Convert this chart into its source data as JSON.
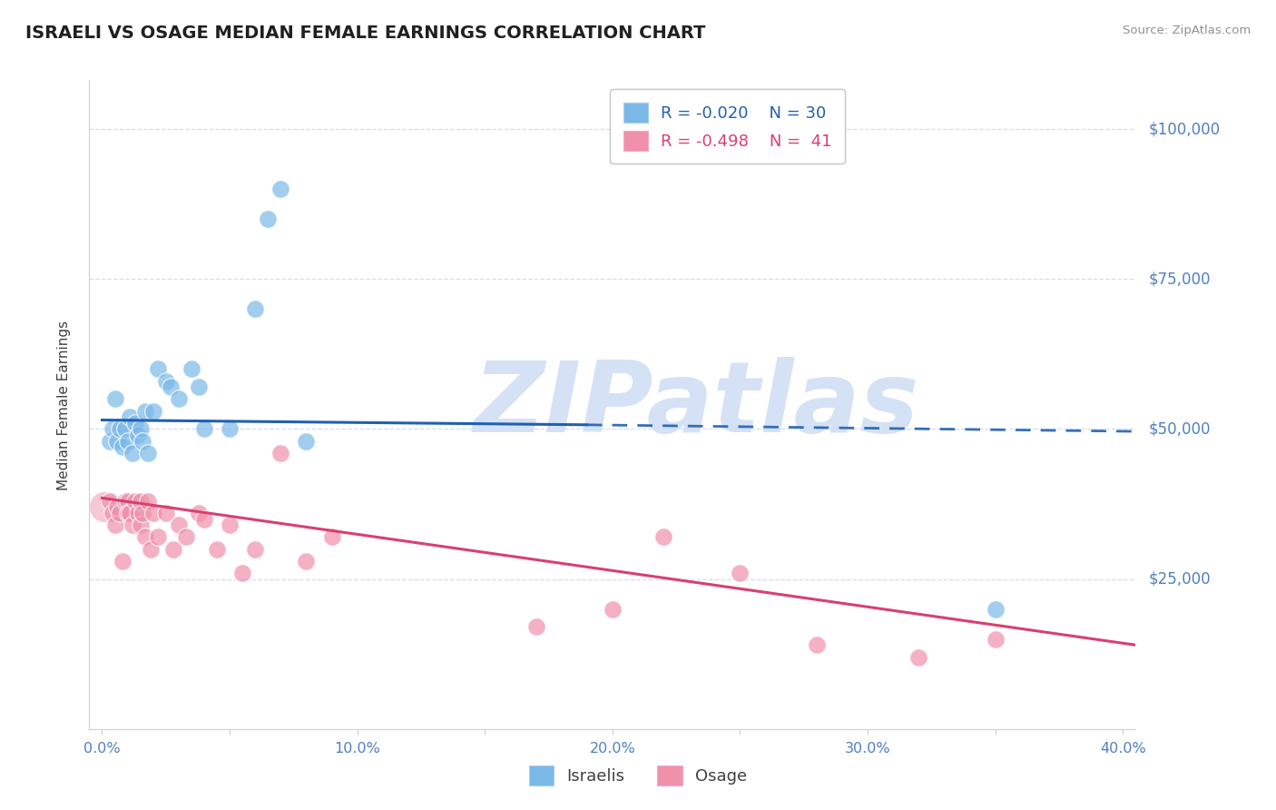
{
  "title": "ISRAELI VS OSAGE MEDIAN FEMALE EARNINGS CORRELATION CHART",
  "source": "Source: ZipAtlas.com",
  "ylabel": "Median Female Earnings",
  "xlim": [
    -0.005,
    0.405
  ],
  "ylim": [
    0,
    108000
  ],
  "yticks": [
    25000,
    50000,
    75000,
    100000
  ],
  "ytick_labels": [
    "$25,000",
    "$50,000",
    "$75,000",
    "$100,000"
  ],
  "xticks": [
    0.0,
    0.05,
    0.1,
    0.15,
    0.2,
    0.25,
    0.3,
    0.35,
    0.4
  ],
  "xtick_labels": [
    "0.0%",
    "",
    "10.0%",
    "",
    "20.0%",
    "",
    "30.0%",
    "",
    "40.0%"
  ],
  "legend_R_israeli": "-0.020",
  "legend_N_israeli": "30",
  "legend_R_osage": "-0.498",
  "legend_N_osage": "41",
  "israeli_color": "#7ab8e8",
  "osage_color": "#f090aa",
  "trend_israeli_color": "#2060b0",
  "trend_osage_color": "#d84070",
  "grid_color": "#d0dff5",
  "watermark_color": "#d5e2f5",
  "background_color": "#ffffff",
  "title_color": "#202020",
  "title_fontsize": 14,
  "axis_label_color": "#404040",
  "tick_label_color": "#5080c0",
  "source_color": "#909090",
  "israeli_x": [
    0.003,
    0.004,
    0.005,
    0.006,
    0.007,
    0.008,
    0.009,
    0.01,
    0.011,
    0.012,
    0.013,
    0.014,
    0.015,
    0.016,
    0.017,
    0.018,
    0.02,
    0.022,
    0.025,
    0.027,
    0.03,
    0.035,
    0.038,
    0.04,
    0.05,
    0.06,
    0.065,
    0.07,
    0.08,
    0.35
  ],
  "israeli_y": [
    48000,
    50000,
    55000,
    48000,
    50000,
    47000,
    50000,
    48000,
    52000,
    46000,
    51000,
    49000,
    50000,
    48000,
    53000,
    46000,
    53000,
    60000,
    58000,
    57000,
    55000,
    60000,
    57000,
    50000,
    50000,
    70000,
    85000,
    90000,
    48000,
    20000
  ],
  "osage_x": [
    0.003,
    0.004,
    0.005,
    0.006,
    0.007,
    0.008,
    0.009,
    0.01,
    0.01,
    0.011,
    0.012,
    0.013,
    0.014,
    0.015,
    0.015,
    0.016,
    0.017,
    0.018,
    0.019,
    0.02,
    0.022,
    0.025,
    0.028,
    0.03,
    0.033,
    0.038,
    0.04,
    0.045,
    0.05,
    0.055,
    0.06,
    0.07,
    0.08,
    0.09,
    0.17,
    0.2,
    0.22,
    0.25,
    0.28,
    0.32,
    0.35
  ],
  "osage_y": [
    38000,
    36000,
    34000,
    37000,
    36000,
    28000,
    38000,
    38000,
    36000,
    36000,
    34000,
    38000,
    36000,
    38000,
    34000,
    36000,
    32000,
    38000,
    30000,
    36000,
    32000,
    36000,
    30000,
    34000,
    32000,
    36000,
    35000,
    30000,
    34000,
    26000,
    30000,
    46000,
    28000,
    32000,
    17000,
    20000,
    32000,
    26000,
    14000,
    12000,
    15000
  ],
  "israeli_trend_x0": 0.0,
  "israeli_trend_x_split": 0.19,
  "israeli_trend_x1": 0.405,
  "israeli_trend_y0": 51500,
  "israeli_trend_y_split": 50700,
  "israeli_trend_y1": 49600,
  "osage_trend_x0": 0.0,
  "osage_trend_x1": 0.405,
  "osage_trend_y0": 38500,
  "osage_trend_y1": 14000
}
